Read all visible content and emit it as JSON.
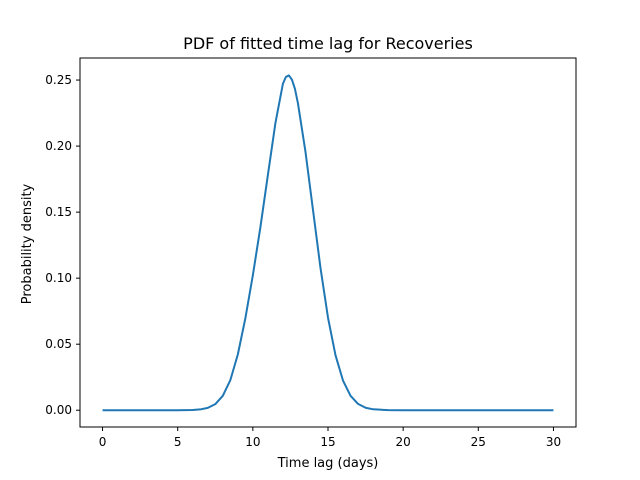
{
  "chart_data": {
    "type": "line",
    "title": "PDF of fitted time lag for Recoveries",
    "xlabel": "Time lag (days)",
    "ylabel": "Probability density",
    "xlim": [
      -1.5,
      31.5
    ],
    "ylim": [
      -0.0127,
      0.2667
    ],
    "grid": false,
    "legend": "none",
    "line_color": "#1f77b4",
    "x_ticks": [
      0,
      5,
      10,
      15,
      20,
      25,
      30
    ],
    "x_tick_labels": [
      "0",
      "5",
      "10",
      "15",
      "20",
      "25",
      "30"
    ],
    "y_ticks": [
      0.0,
      0.05,
      0.1,
      0.15,
      0.2,
      0.25
    ],
    "y_tick_labels": [
      "0.00",
      "0.05",
      "0.10",
      "0.15",
      "0.20",
      "0.25"
    ],
    "series": [
      {
        "x": [
          0,
          1,
          2,
          3,
          4,
          5,
          6,
          6.5,
          7,
          7.5,
          8,
          8.5,
          9,
          9.5,
          10,
          10.5,
          11,
          11.5,
          12,
          12.2,
          12.4,
          12.6,
          12.8,
          13,
          13.5,
          14,
          14.5,
          15,
          15.5,
          16,
          16.5,
          17,
          17.5,
          18,
          19,
          20,
          21,
          22,
          23,
          24,
          25,
          26,
          27,
          28,
          29,
          30
        ],
        "y": [
          0,
          0,
          0,
          0,
          0,
          0,
          0.0002,
          0.0006,
          0.0018,
          0.0046,
          0.0109,
          0.0227,
          0.0422,
          0.0695,
          0.1022,
          0.1384,
          0.1781,
          0.2173,
          0.2472,
          0.2524,
          0.2535,
          0.2503,
          0.2434,
          0.2324,
          0.1958,
          0.1518,
          0.1078,
          0.0701,
          0.0416,
          0.0224,
          0.0109,
          0.0048,
          0.0019,
          0.0007,
          0.0001,
          0,
          0,
          0,
          0,
          0,
          0,
          0,
          0,
          0,
          0,
          0
        ]
      }
    ]
  }
}
